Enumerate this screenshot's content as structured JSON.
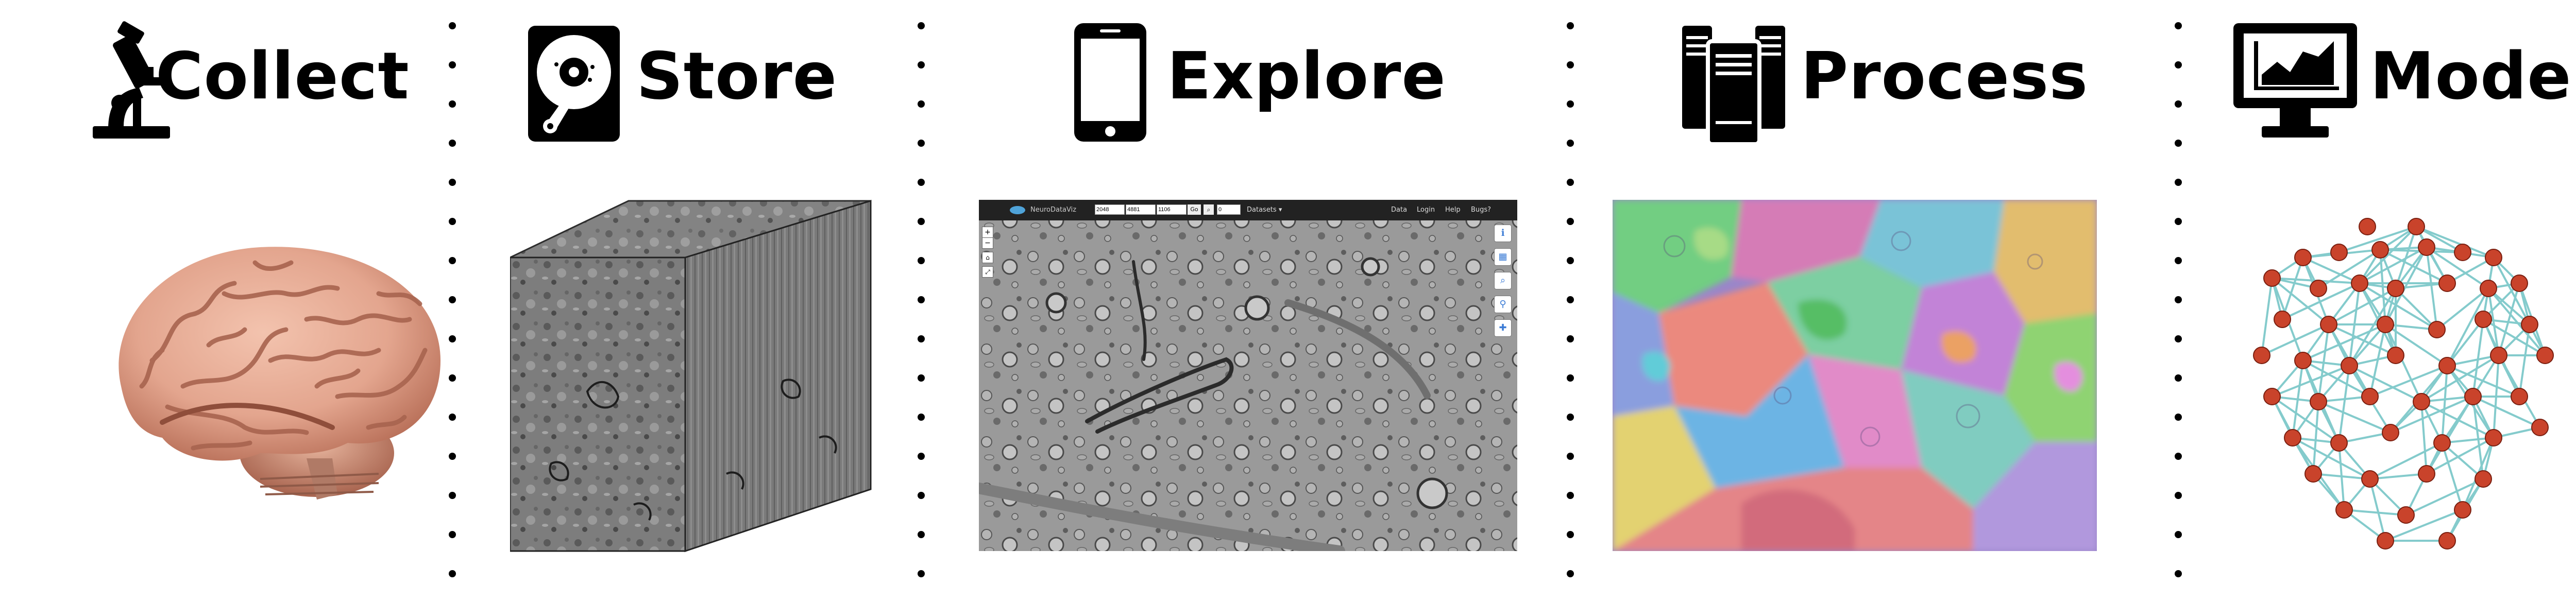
{
  "stages": [
    {
      "label": "Collect",
      "icon": "microscope-icon"
    },
    {
      "label": "Store",
      "icon": "hard-drive-icon"
    },
    {
      "label": "Explore",
      "icon": "smartphone-icon"
    },
    {
      "label": "Process",
      "icon": "server-icon"
    },
    {
      "label": "Model",
      "icon": "monitor-chart-icon"
    }
  ],
  "viewer": {
    "brand": "NeuroDataViz",
    "inputs": [
      "2048",
      "4881",
      "1106",
      "0"
    ],
    "zoom_label": "Go",
    "datasets_label": "Datasets ▾",
    "nav_links": [
      "Data",
      "Login",
      "Help",
      "Bugs?"
    ]
  },
  "colors": {
    "brain": "#e3a58e",
    "em_gray": "#8a8a8a",
    "node": "#c9432b",
    "edge": "#6fc3c4"
  }
}
